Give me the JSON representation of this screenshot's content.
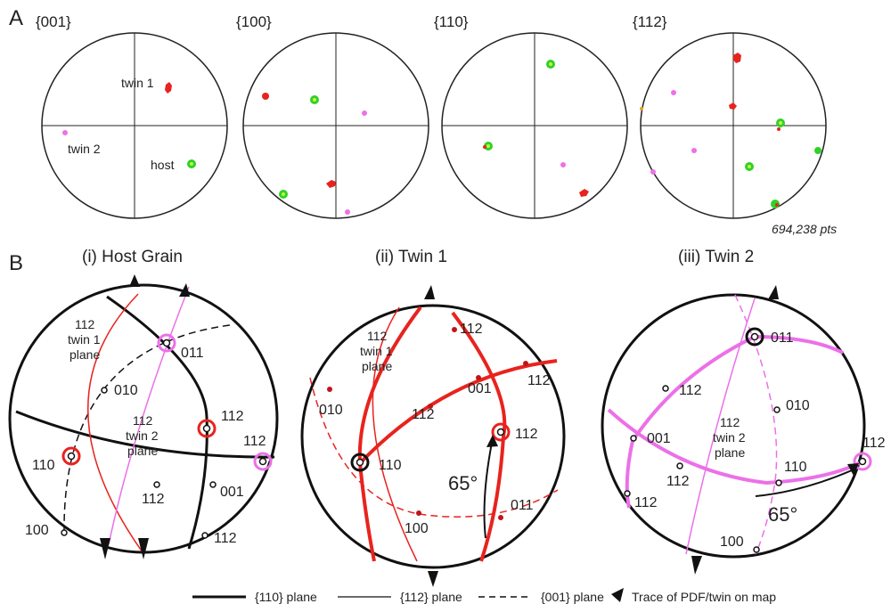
{
  "panel_labels": {
    "a": "A",
    "b": "B"
  },
  "pole_figures": [
    {
      "label": "{001}",
      "annotations": [
        "twin 1",
        "twin 2",
        "host"
      ]
    },
    {
      "label": "{100}",
      "annotations": []
    },
    {
      "label": "{110}",
      "annotations": []
    },
    {
      "label": "{112}",
      "annotations": []
    }
  ],
  "points_count": "694,238 pts",
  "stereonets": [
    {
      "title": "(i)  Host Grain",
      "plane_label": [
        "112",
        "twin 1",
        "plane"
      ],
      "plane_label_2": [
        "112",
        "twin 2",
        "plane"
      ],
      "poles": [
        "011",
        "010",
        "112",
        "112",
        "110",
        "001",
        "112",
        "100",
        "112"
      ]
    },
    {
      "title": "(ii) Twin 1",
      "plane_label": [
        "112",
        "twin 1",
        "plane"
      ],
      "poles": [
        "112",
        "112",
        "010",
        "001",
        "112",
        "112",
        "110",
        "011",
        "100"
      ],
      "angle": "65°"
    },
    {
      "title": "(iii)  Twin 2",
      "plane_label": [
        "112",
        "twin 2",
        "plane"
      ],
      "poles": [
        "011",
        "112",
        "010",
        "001",
        "112",
        "110",
        "112",
        "112",
        "100"
      ],
      "angle": "65°"
    }
  ],
  "legend": {
    "plane110": "{110} plane",
    "plane112": "{112} plane",
    "plane001": "{001} plane",
    "trace": "Trace of PDF/twin on map"
  },
  "colors": {
    "red": "#e8231e",
    "dark_red": "#c0141a",
    "magenta": "#ec70e8",
    "green": "#2fd12a",
    "lime": "#c6f53a"
  }
}
